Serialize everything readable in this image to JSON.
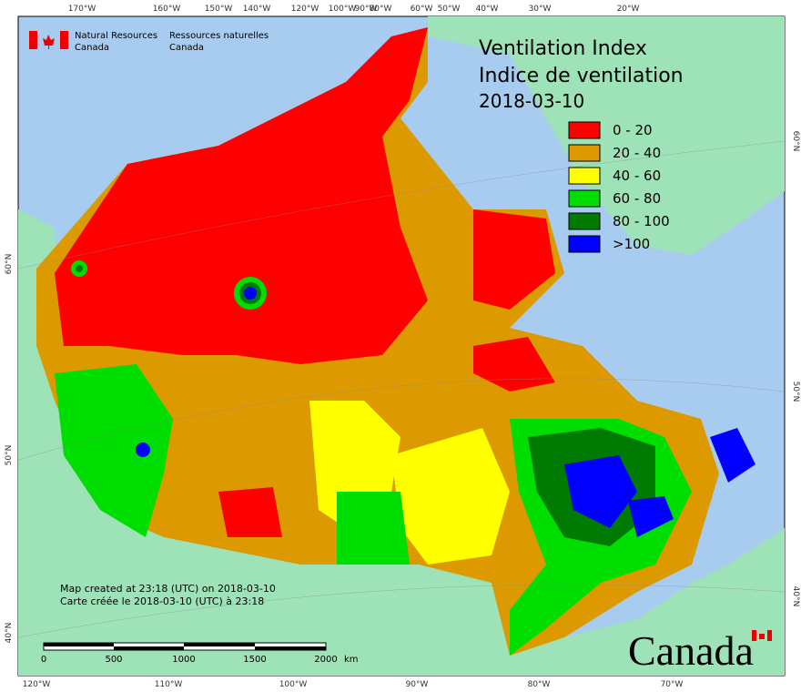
{
  "header": {
    "title": "Ventilation Index",
    "subtitle": "Indice de ventilation",
    "date": "2018-03-10"
  },
  "logo": {
    "en": "Natural Resources",
    "en_country": "Canada",
    "fr": "Ressources naturelles",
    "fr_country": "Canada"
  },
  "legend": [
    {
      "label": "0 - 20",
      "color": "#ff0000"
    },
    {
      "label": "20 - 40",
      "color": "#dc9a00"
    },
    {
      "label": "40 - 60",
      "color": "#ffff00"
    },
    {
      "label": "60 - 80",
      "color": "#00dd00"
    },
    {
      "label": "80 - 100",
      "color": "#007a00"
    },
    {
      "label": ">100",
      "color": "#0000ff"
    }
  ],
  "graticule": {
    "top": [
      "170°W",
      "160°W",
      "150°W",
      "140°W",
      "120°W",
      "100°W",
      "90°W",
      "80°W",
      "60°W",
      "50°W",
      "40°W",
      "30°W",
      "20°W"
    ],
    "bottom": [
      "120°W",
      "110°W",
      "100°W",
      "90°W",
      "80°W",
      "70°W"
    ],
    "left": [
      "60°N",
      "50°N",
      "40°N"
    ],
    "right": [
      "60°N",
      "50°N",
      "40°N"
    ]
  },
  "scale_bar": {
    "ticks": [
      "0",
      "500",
      "1000",
      "1500",
      "2000"
    ],
    "unit": "km"
  },
  "footnote": [
    "Map created at 23:18 (UTC) on 2018-03-10",
    "Carte créée le 2018-03-10 (UTC) à 23:18"
  ],
  "wordmark": "Canada"
}
